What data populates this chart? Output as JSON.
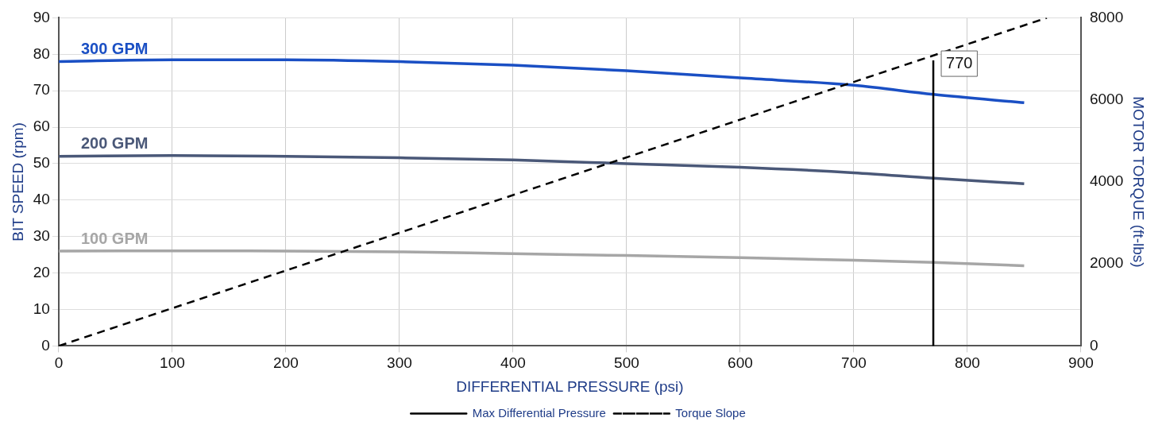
{
  "chart_data": {
    "type": "line",
    "xlabel": "DIFFERENTIAL PRESSURE (psi)",
    "ylabel": "BIT SPEED (rpm)",
    "y2label": "MOTOR TORQUE (ft-lbs)",
    "x": [
      0,
      100,
      200,
      300,
      400,
      500,
      600,
      700,
      770,
      850
    ],
    "series": [
      {
        "name": "300 GPM",
        "color": "#1a4fc4",
        "values": [
          78,
          78.5,
          78.5,
          78,
          77,
          75.5,
          73.5,
          71.5,
          69,
          66.7
        ]
      },
      {
        "name": "200 GPM",
        "color": "#4a5878",
        "values": [
          52,
          52.2,
          52,
          51.6,
          51,
          50,
          49,
          47.5,
          46,
          44.5
        ]
      },
      {
        "name": "100 GPM",
        "color": "#a6a6a6",
        "values": [
          26,
          26.1,
          26,
          25.8,
          25.3,
          24.8,
          24.2,
          23.5,
          22.9,
          22
        ]
      },
      {
        "name": "Max Differential Pressure",
        "color": "#000000",
        "x": [
          770,
          770
        ],
        "values": [
          0,
          78.3
        ],
        "line_style": "solid"
      },
      {
        "name": "Torque Slope",
        "color": "#000000",
        "x": [
          0,
          870
        ],
        "values": [
          0,
          8000
        ],
        "axis": "y2",
        "line_style": "dashed"
      }
    ],
    "xlim": [
      0,
      900
    ],
    "xticks": [
      0,
      100,
      200,
      300,
      400,
      500,
      600,
      700,
      800,
      900
    ],
    "ylim": [
      0,
      90
    ],
    "yticks": [
      0,
      10,
      20,
      30,
      40,
      50,
      60,
      70,
      80,
      90
    ],
    "y2lim": [
      0,
      8000
    ],
    "y2ticks": [
      0,
      2000,
      4000,
      6000,
      8000
    ],
    "annotations": [
      {
        "text": "770",
        "x": 770,
        "y": 78.3
      }
    ],
    "grid": true,
    "legend": "bottom",
    "marker": "none"
  }
}
